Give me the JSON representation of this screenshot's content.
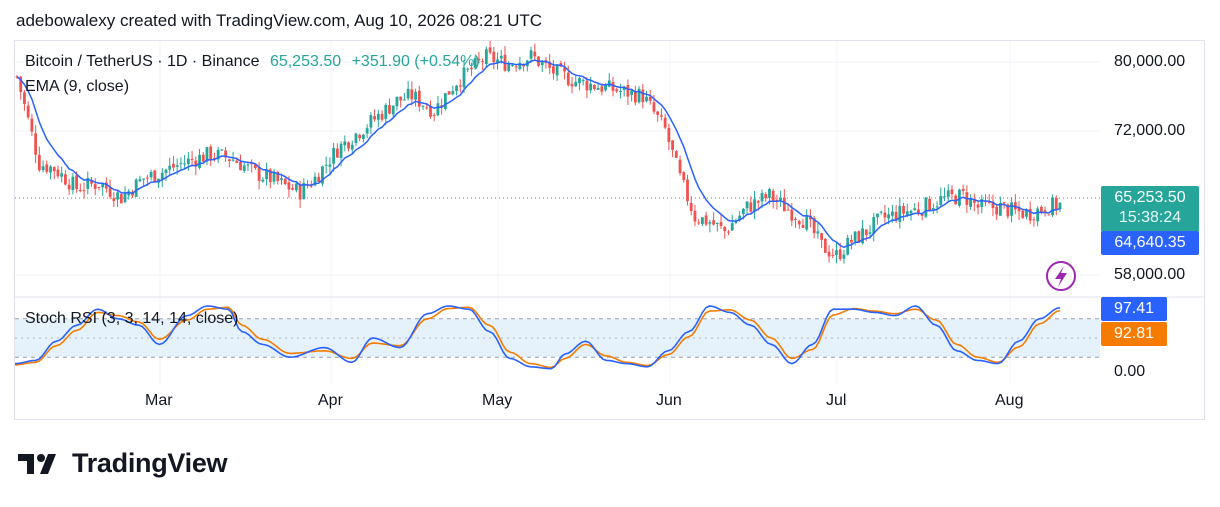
{
  "attribution": "adebowalexy created with TradingView.com, Aug 10, 2026 08:21 UTC",
  "legend": {
    "symbol": "Bitcoin / TetherUS · 1D · Binance",
    "price": "65,253.50",
    "change": "+351.90 (+0.54%)",
    "ema_label": "EMA (9, close)",
    "stoch_label": "Stoch RSI (3, 3, 14, 14, close)"
  },
  "price_axis": {
    "labels": [
      "80,000.00",
      "72,000.00",
      "58,000.00"
    ],
    "last_price": "65,253.50",
    "countdown": "15:38:24",
    "ema_value": "64,640.35"
  },
  "stoch_axis": {
    "k_value": "97.41",
    "d_value": "92.81",
    "zero_label": "0.00"
  },
  "time_axis": [
    "Mar",
    "Apr",
    "May",
    "Jun",
    "Jul",
    "Aug"
  ],
  "brand": {
    "name": "TradingView"
  },
  "colors": {
    "up": "#26a69a",
    "down": "#ef5350",
    "ema": "#2962ff",
    "stoch_k": "#2962ff",
    "stoch_d": "#f57c00",
    "band_fill": "#e6f2fb",
    "last_price_tag": "#26a69a",
    "ema_tag": "#2962ff"
  },
  "icons": {
    "alert": "lightning-icon",
    "logo": "tradingview-logo-icon"
  },
  "chart_data": [
    {
      "type": "candlestick",
      "title": "Bitcoin / TetherUS · 1D · Binance",
      "y_ticks": [
        80000,
        72000,
        58000
      ],
      "y_range": [
        56500,
        82000
      ],
      "x_ticks": [
        "Mar",
        "Apr",
        "May",
        "Jun",
        "Jul",
        "Aug"
      ],
      "series": [
        {
          "name": "EMA (9, close)",
          "last": 64640.35
        }
      ],
      "close_trend": [
        [
          0,
          78500
        ],
        [
          3,
          74000
        ],
        [
          6,
          69500
        ],
        [
          10,
          69000
        ],
        [
          16,
          67000
        ],
        [
          22,
          67500
        ],
        [
          28,
          66000
        ],
        [
          34,
          68000
        ],
        [
          38,
          68500
        ],
        [
          44,
          69500
        ],
        [
          52,
          70500
        ],
        [
          58,
          70000
        ],
        [
          64,
          68500
        ],
        [
          68,
          68000
        ],
        [
          72,
          67200
        ],
        [
          76,
          66600
        ],
        [
          80,
          68000
        ],
        [
          86,
          71000
        ],
        [
          94,
          73500
        ],
        [
          102,
          76000
        ],
        [
          106,
          76500
        ],
        [
          112,
          75000
        ],
        [
          118,
          78000
        ],
        [
          126,
          80500
        ],
        [
          132,
          79800
        ],
        [
          138,
          80600
        ],
        [
          144,
          79000
        ],
        [
          150,
          78000
        ],
        [
          156,
          77500
        ],
        [
          162,
          77000
        ],
        [
          168,
          76500
        ],
        [
          174,
          73000
        ],
        [
          178,
          68000
        ],
        [
          182,
          64000
        ],
        [
          186,
          63500
        ],
        [
          190,
          62500
        ],
        [
          196,
          65000
        ],
        [
          202,
          66200
        ],
        [
          208,
          64500
        ],
        [
          212,
          63500
        ],
        [
          216,
          61000
        ],
        [
          220,
          60000
        ],
        [
          224,
          61500
        ],
        [
          228,
          62500
        ],
        [
          232,
          63800
        ],
        [
          238,
          64500
        ],
        [
          242,
          64800
        ],
        [
          248,
          65800
        ],
        [
          254,
          66200
        ],
        [
          258,
          65000
        ],
        [
          264,
          65000
        ],
        [
          268,
          64500
        ],
        [
          272,
          64400
        ],
        [
          276,
          65000
        ],
        [
          280,
          65253.5
        ]
      ],
      "last_price": 65253.5
    },
    {
      "type": "line",
      "title": "Stoch RSI (3, 3, 14, 14, close)",
      "y_range": [
        0,
        100
      ],
      "bands": [
        20,
        80
      ],
      "y_ticks": [
        0
      ],
      "series": [
        {
          "name": "K",
          "last": 97.41,
          "values": [
            [
              0,
              10
            ],
            [
              6,
              15
            ],
            [
              12,
              45
            ],
            [
              18,
              70
            ],
            [
              24,
              95
            ],
            [
              30,
              80
            ],
            [
              36,
              70
            ],
            [
              42,
              40
            ],
            [
              50,
              85
            ],
            [
              56,
              100
            ],
            [
              62,
              95
            ],
            [
              66,
              60
            ],
            [
              72,
              40
            ],
            [
              80,
              20
            ],
            [
              90,
              35
            ],
            [
              98,
              12
            ],
            [
              104,
              50
            ],
            [
              112,
              35
            ],
            [
              120,
              88
            ],
            [
              126,
              100
            ],
            [
              132,
              95
            ],
            [
              138,
              60
            ],
            [
              144,
              18
            ],
            [
              150,
              5
            ],
            [
              156,
              2
            ],
            [
              160,
              25
            ],
            [
              166,
              45
            ],
            [
              172,
              15
            ],
            [
              178,
              10
            ],
            [
              184,
              5
            ],
            [
              190,
              30
            ],
            [
              196,
              60
            ],
            [
              202,
              100
            ],
            [
              208,
              90
            ],
            [
              214,
              70
            ],
            [
              220,
              40
            ],
            [
              226,
              10
            ],
            [
              232,
              40
            ],
            [
              238,
              95
            ],
            [
              244,
              95
            ],
            [
              250,
              90
            ],
            [
              256,
              85
            ],
            [
              262,
              100
            ],
            [
              268,
              70
            ],
            [
              274,
              30
            ],
            [
              280,
              15
            ],
            [
              286,
              10
            ],
            [
              292,
              45
            ],
            [
              298,
              80
            ],
            [
              304,
              97.41
            ]
          ]
        },
        {
          "name": "D",
          "last": 92.81,
          "values": [
            [
              0,
              8
            ],
            [
              6,
              12
            ],
            [
              12,
              38
            ],
            [
              18,
              62
            ],
            [
              24,
              90
            ],
            [
              30,
              85
            ],
            [
              36,
              75
            ],
            [
              42,
              48
            ],
            [
              50,
              78
            ],
            [
              56,
              95
            ],
            [
              62,
              98
            ],
            [
              66,
              70
            ],
            [
              72,
              48
            ],
            [
              80,
              26
            ],
            [
              90,
              30
            ],
            [
              98,
              18
            ],
            [
              104,
              42
            ],
            [
              112,
              38
            ],
            [
              120,
              80
            ],
            [
              126,
              96
            ],
            [
              132,
              98
            ],
            [
              138,
              70
            ],
            [
              144,
              28
            ],
            [
              150,
              10
            ],
            [
              156,
              4
            ],
            [
              160,
              18
            ],
            [
              166,
              40
            ],
            [
              172,
              22
            ],
            [
              178,
              12
            ],
            [
              184,
              7
            ],
            [
              190,
              24
            ],
            [
              196,
              52
            ],
            [
              202,
              92
            ],
            [
              208,
              94
            ],
            [
              214,
              78
            ],
            [
              220,
              50
            ],
            [
              226,
              18
            ],
            [
              232,
              32
            ],
            [
              238,
              86
            ],
            [
              244,
              96
            ],
            [
              250,
              92
            ],
            [
              256,
              88
            ],
            [
              262,
              95
            ],
            [
              268,
              78
            ],
            [
              274,
              40
            ],
            [
              280,
              20
            ],
            [
              286,
              12
            ],
            [
              292,
              36
            ],
            [
              298,
              72
            ],
            [
              304,
              92.81
            ]
          ]
        }
      ]
    }
  ]
}
